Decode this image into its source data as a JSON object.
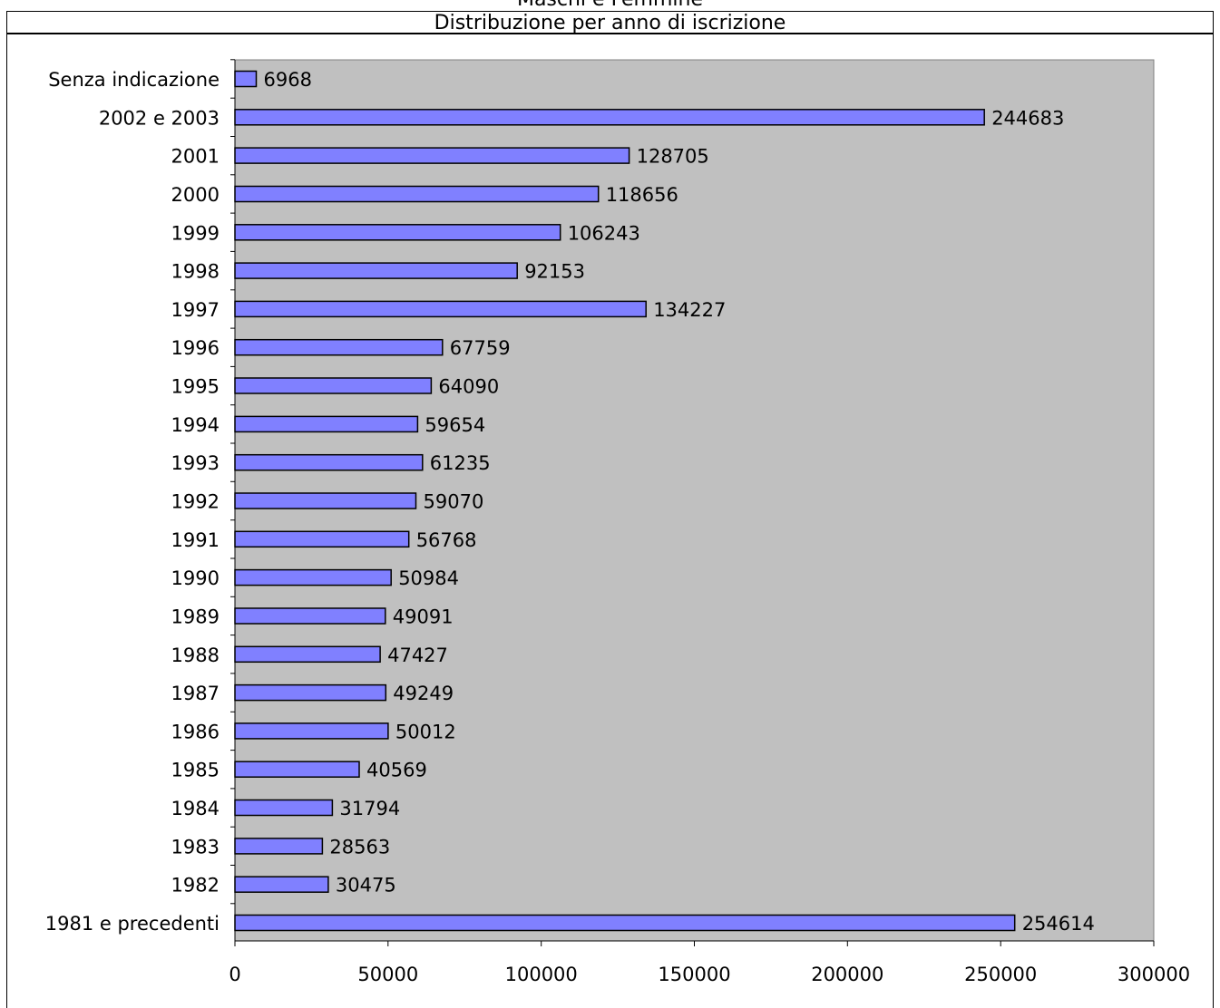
{
  "header": {
    "top_title": "Maschi e Femmine",
    "subtitle": "Distribuzione per anno di iscrizione"
  },
  "colors": {
    "plot_background": "#c0c0c0",
    "bar_fill": "#8080ff",
    "bar_stroke": "#000000"
  },
  "chart_data": {
    "type": "bar",
    "orientation": "horizontal",
    "title": "Distribuzione per anno di iscrizione",
    "categories": [
      "Senza indicazione",
      "2002 e 2003",
      "2001",
      "2000",
      "1999",
      "1998",
      "1997",
      "1996",
      "1995",
      "1994",
      "1993",
      "1992",
      "1991",
      "1990",
      "1989",
      "1988",
      "1987",
      "1986",
      "1985",
      "1984",
      "1983",
      "1982",
      "1981 e precedenti"
    ],
    "values": [
      6968,
      244683,
      128705,
      118656,
      106243,
      92153,
      134227,
      67759,
      64090,
      59654,
      61235,
      59070,
      56768,
      50984,
      49091,
      47427,
      49249,
      50012,
      40569,
      31794,
      28563,
      30475,
      254614
    ],
    "xlim": [
      0,
      300000
    ],
    "xticks": [
      "0",
      "50000",
      "100000",
      "150000",
      "200000",
      "250000",
      "300000"
    ],
    "grid": false,
    "legend": "none",
    "data_labels": true
  }
}
